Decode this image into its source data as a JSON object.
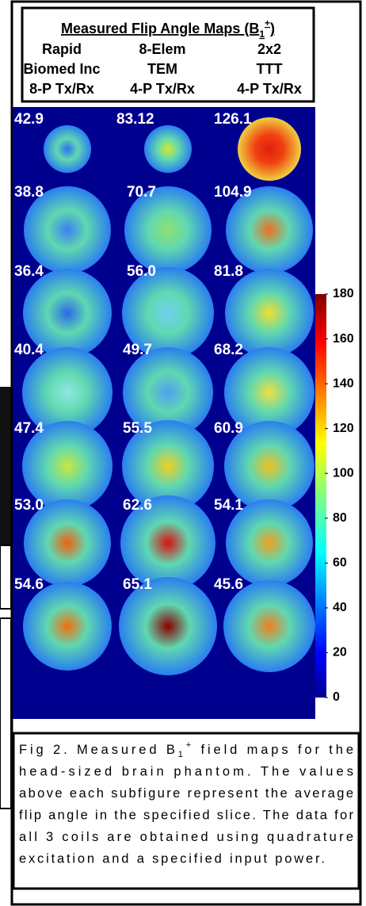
{
  "header": {
    "title": {
      "main": "Measured Flip Angle Maps (B",
      "sub": "1",
      "sup": "+",
      "end": ")"
    },
    "columns": [
      [
        "Rapid",
        "8-Elem",
        "2x2"
      ],
      [
        "Biomed Inc",
        "TEM",
        "TTT"
      ],
      [
        "8-P Tx/Rx",
        "4-P Tx/Rx",
        "4-P Tx/Rx"
      ]
    ]
  },
  "maps": {
    "values": [
      [
        "42.9",
        "83.12",
        "126.1"
      ],
      [
        "38.8",
        "70.7",
        "104.9"
      ],
      [
        "36.4",
        "56.0",
        "81.8"
      ],
      [
        "40.4",
        "49.7",
        "68.2"
      ],
      [
        "47.4",
        "55.5",
        "60.9"
      ],
      [
        "53.0",
        "62.6",
        "54.1"
      ],
      [
        "54.6",
        "65.1",
        "45.6"
      ]
    ]
  },
  "colorbar": {
    "range": [
      0,
      180
    ],
    "ticks": [
      0,
      20,
      40,
      60,
      80,
      100,
      120,
      140,
      160,
      180
    ]
  },
  "caption": {
    "lines": [
      {
        "a": "Fig 2.   Measured B",
        "sub": "1",
        "sup": "+",
        "b": " field maps for the"
      },
      {
        "a": "head-sized brain phantom.   The values"
      },
      {
        "a": "above each subfigure represent the average"
      },
      {
        "a": "flip angle in the specified slice.  The data for"
      },
      {
        "a": "all 3 coils are obtained using quadrature"
      },
      {
        "a": "excitation and a specified input power."
      }
    ]
  }
}
